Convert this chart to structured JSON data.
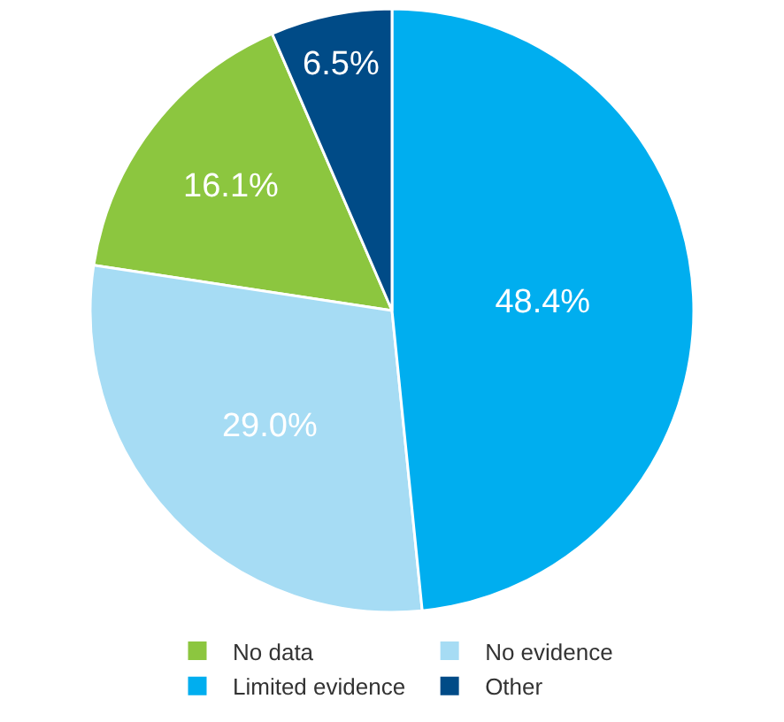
{
  "chart_data": {
    "type": "pie",
    "categories": [
      "No data",
      "No evidence",
      "Limited evidence",
      "Other"
    ],
    "values": [
      16.1,
      29.0,
      48.4,
      6.5
    ],
    "value_labels": [
      "16.1%",
      "29.0%",
      "48.4%",
      "6.5%"
    ],
    "colors": [
      "#8cc63f",
      "#a6dcf4",
      "#00aeef",
      "#004b87"
    ],
    "legend": "bottom"
  }
}
